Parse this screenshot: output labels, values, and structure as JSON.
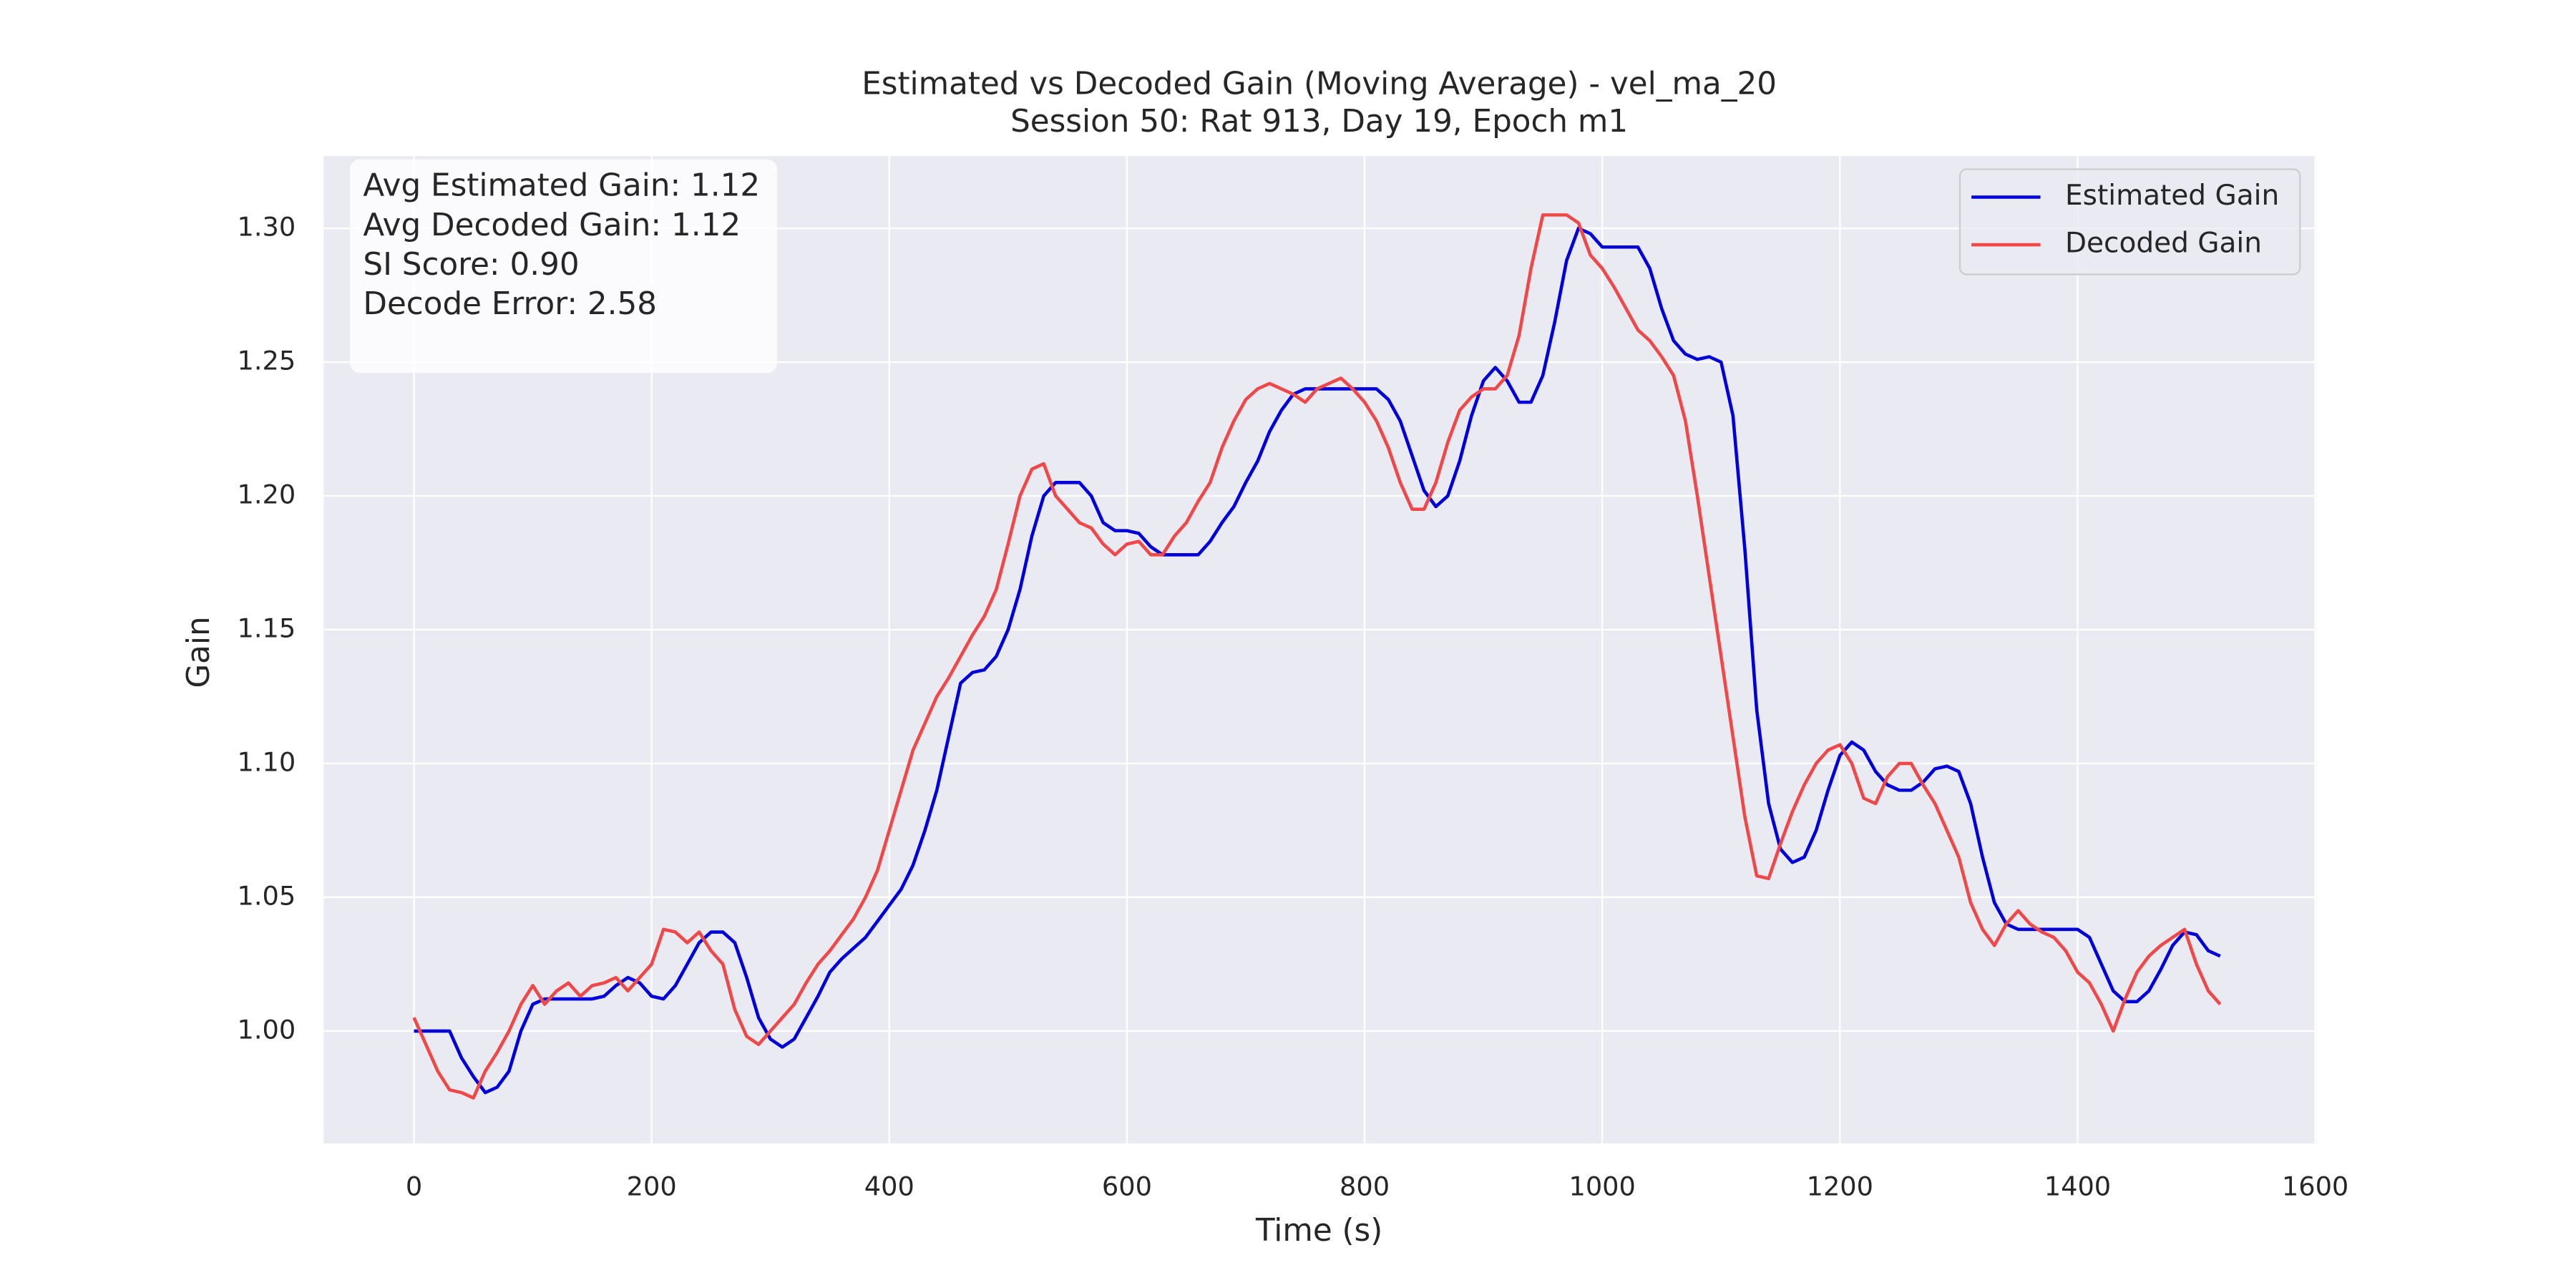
{
  "chart_data": {
    "type": "line",
    "title": "Estimated vs Decoded Gain (Moving Average) - vel_ma_20",
    "subtitle": "Session 50: Rat 913, Day 19, Epoch m1",
    "xlabel": "Time (s)",
    "ylabel": "Gain",
    "xlim": [
      -76,
      1601
    ],
    "ylim": [
      0.958,
      1.327
    ],
    "xticks": [
      0,
      200,
      400,
      600,
      800,
      1000,
      1200,
      1400,
      1600
    ],
    "yticks": [
      {
        "value": 1,
        "label": "1.00"
      },
      1.05,
      {
        "value": 1.1,
        "label": "1.10"
      },
      1.15,
      {
        "value": 1.2,
        "label": "1.20"
      },
      1.25,
      {
        "value": 1.3,
        "label": "1.30"
      }
    ],
    "grid": true,
    "legend": "upper right",
    "annotations": [
      "Avg Estimated Gain: 1.12",
      "Avg Decoded Gain: 1.12",
      "SI Score: 0.90",
      "Decode Error: 2.58"
    ],
    "x": [
      0,
      10,
      20,
      30,
      40,
      50,
      60,
      70,
      80,
      90,
      100,
      110,
      120,
      130,
      140,
      150,
      160,
      170,
      180,
      190,
      200,
      210,
      220,
      230,
      240,
      250,
      260,
      270,
      280,
      290,
      300,
      310,
      320,
      330,
      340,
      350,
      360,
      370,
      380,
      390,
      400,
      410,
      420,
      430,
      440,
      450,
      460,
      470,
      480,
      490,
      500,
      510,
      520,
      530,
      540,
      550,
      560,
      570,
      580,
      590,
      600,
      610,
      620,
      630,
      640,
      650,
      660,
      670,
      680,
      690,
      700,
      710,
      720,
      730,
      740,
      750,
      760,
      770,
      780,
      790,
      800,
      810,
      820,
      830,
      840,
      850,
      860,
      870,
      880,
      890,
      900,
      910,
      920,
      930,
      940,
      950,
      960,
      970,
      980,
      990,
      1000,
      1010,
      1020,
      1030,
      1040,
      1050,
      1060,
      1070,
      1080,
      1090,
      1100,
      1110,
      1120,
      1130,
      1140,
      1150,
      1160,
      1170,
      1180,
      1190,
      1200,
      1210,
      1220,
      1230,
      1240,
      1250,
      1260,
      1270,
      1280,
      1290,
      1300,
      1310,
      1320,
      1330,
      1340,
      1350,
      1360,
      1370,
      1380,
      1390,
      1400,
      1410,
      1420,
      1430,
      1440,
      1450,
      1460,
      1470,
      1480,
      1490,
      1500,
      1510,
      1520
    ],
    "series": [
      {
        "name": "Estimated Gain",
        "color": "#0000dd",
        "values": [
          1.0,
          1.0,
          1.0,
          1.0,
          0.99,
          0.983,
          0.977,
          0.979,
          0.985,
          1.0,
          1.01,
          1.012,
          1.012,
          1.012,
          1.012,
          1.012,
          1.013,
          1.017,
          1.02,
          1.018,
          1.013,
          1.012,
          1.017,
          1.025,
          1.033,
          1.037,
          1.037,
          1.033,
          1.02,
          1.005,
          0.997,
          0.994,
          0.997,
          1.005,
          1.013,
          1.022,
          1.027,
          1.031,
          1.035,
          1.041,
          1.047,
          1.053,
          1.062,
          1.075,
          1.09,
          1.11,
          1.13,
          1.134,
          1.135,
          1.14,
          1.15,
          1.165,
          1.185,
          1.2,
          1.205,
          1.205,
          1.205,
          1.2,
          1.19,
          1.187,
          1.187,
          1.186,
          1.181,
          1.178,
          1.178,
          1.178,
          1.178,
          1.183,
          1.19,
          1.196,
          1.205,
          1.213,
          1.224,
          1.232,
          1.238,
          1.24,
          1.24,
          1.24,
          1.24,
          1.24,
          1.24,
          1.24,
          1.236,
          1.228,
          1.215,
          1.202,
          1.196,
          1.2,
          1.213,
          1.23,
          1.243,
          1.248,
          1.243,
          1.235,
          1.235,
          1.245,
          1.265,
          1.288,
          1.3,
          1.298,
          1.293,
          1.293,
          1.293,
          1.293,
          1.285,
          1.27,
          1.258,
          1.253,
          1.251,
          1.252,
          1.25,
          1.23,
          1.18,
          1.12,
          1.085,
          1.068,
          1.063,
          1.065,
          1.075,
          1.09,
          1.103,
          1.108,
          1.105,
          1.097,
          1.092,
          1.09,
          1.09,
          1.093,
          1.098,
          1.099,
          1.097,
          1.085,
          1.065,
          1.048,
          1.04,
          1.038,
          1.038,
          1.038,
          1.038,
          1.038,
          1.038,
          1.035,
          1.025,
          1.015,
          1.011,
          1.011,
          1.015,
          1.023,
          1.032,
          1.037,
          1.036,
          1.03,
          1.028
        ]
      },
      {
        "name": "Decoded Gain",
        "color": "#f04848",
        "values": [
          1.005,
          0.995,
          0.985,
          0.978,
          0.977,
          0.975,
          0.985,
          0.992,
          1.0,
          1.01,
          1.017,
          1.01,
          1.015,
          1.018,
          1.013,
          1.017,
          1.018,
          1.02,
          1.015,
          1.02,
          1.025,
          1.038,
          1.037,
          1.033,
          1.037,
          1.03,
          1.025,
          1.008,
          0.998,
          0.995,
          1.0,
          1.005,
          1.01,
          1.018,
          1.025,
          1.03,
          1.036,
          1.042,
          1.05,
          1.06,
          1.075,
          1.09,
          1.105,
          1.115,
          1.125,
          1.132,
          1.14,
          1.148,
          1.155,
          1.165,
          1.182,
          1.2,
          1.21,
          1.212,
          1.2,
          1.195,
          1.19,
          1.188,
          1.182,
          1.178,
          1.182,
          1.183,
          1.178,
          1.178,
          1.185,
          1.19,
          1.198,
          1.205,
          1.218,
          1.228,
          1.236,
          1.24,
          1.242,
          1.24,
          1.238,
          1.235,
          1.24,
          1.242,
          1.244,
          1.24,
          1.235,
          1.228,
          1.218,
          1.205,
          1.195,
          1.195,
          1.205,
          1.22,
          1.232,
          1.237,
          1.24,
          1.24,
          1.245,
          1.26,
          1.285,
          1.305,
          1.305,
          1.305,
          1.302,
          1.29,
          1.285,
          1.278,
          1.27,
          1.262,
          1.258,
          1.252,
          1.245,
          1.228,
          1.2,
          1.17,
          1.14,
          1.11,
          1.08,
          1.058,
          1.057,
          1.07,
          1.082,
          1.092,
          1.1,
          1.105,
          1.107,
          1.1,
          1.087,
          1.085,
          1.095,
          1.1,
          1.1,
          1.092,
          1.085,
          1.075,
          1.065,
          1.048,
          1.038,
          1.032,
          1.04,
          1.045,
          1.04,
          1.037,
          1.035,
          1.03,
          1.022,
          1.018,
          1.01,
          1.0,
          1.012,
          1.022,
          1.028,
          1.032,
          1.035,
          1.038,
          1.025,
          1.015,
          1.01
        ]
      }
    ]
  }
}
